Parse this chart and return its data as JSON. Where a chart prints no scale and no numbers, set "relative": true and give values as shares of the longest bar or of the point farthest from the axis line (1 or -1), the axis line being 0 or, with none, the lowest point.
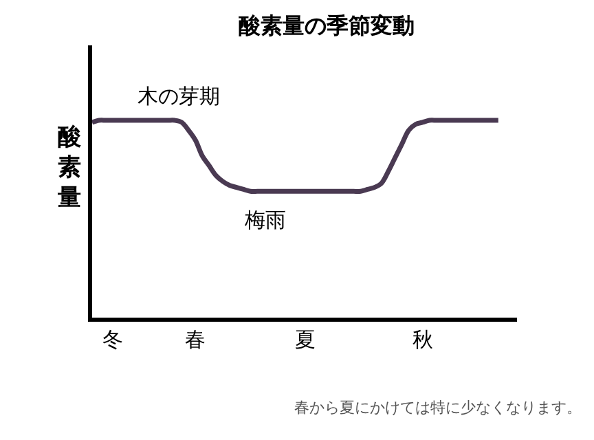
{
  "chart_data": {
    "type": "line",
    "title": "酸素量の季節変動",
    "ylabel": "酸素量",
    "relative": true,
    "categories": [
      null,
      null,
      null,
      "冬",
      null,
      null,
      null,
      null,
      null,
      null,
      null,
      null,
      null,
      null,
      null,
      "春",
      null,
      null,
      null,
      null,
      null,
      null,
      null,
      null,
      null,
      null,
      null,
      null,
      null,
      null,
      null,
      "夏",
      null,
      null,
      null,
      null,
      null,
      null,
      null,
      null,
      null,
      null,
      null,
      null,
      null,
      null,
      null,
      null,
      "秋",
      null,
      null,
      null,
      null,
      null,
      null,
      null,
      null,
      null,
      null,
      null
    ],
    "series": [
      {
        "color": "#4a3a52",
        "values": [
          0.99,
          1.0,
          1.0,
          1.0,
          1.0,
          1.0,
          1.0,
          1.0,
          1.0,
          1.0,
          1.0,
          1.0,
          1.0,
          0.99,
          0.95,
          0.9,
          0.82,
          0.77,
          0.72,
          0.69,
          0.67,
          0.66,
          0.65,
          0.64,
          0.64,
          0.64,
          0.64,
          0.64,
          0.64,
          0.64,
          0.64,
          0.64,
          0.64,
          0.64,
          0.64,
          0.64,
          0.64,
          0.64,
          0.64,
          0.64,
          0.65,
          0.66,
          0.68,
          0.74,
          0.81,
          0.88,
          0.95,
          0.98,
          0.99,
          1.0,
          1.0,
          1.0,
          1.0,
          1.0,
          1.0,
          1.0,
          1.0,
          1.0,
          1.0,
          1.0
        ]
      }
    ],
    "annotations": [
      "木の芽期",
      "梅雨",
      "春から夏にかけては特に少なくなります。"
    ],
    "marker": "none",
    "line_style": "solid"
  }
}
